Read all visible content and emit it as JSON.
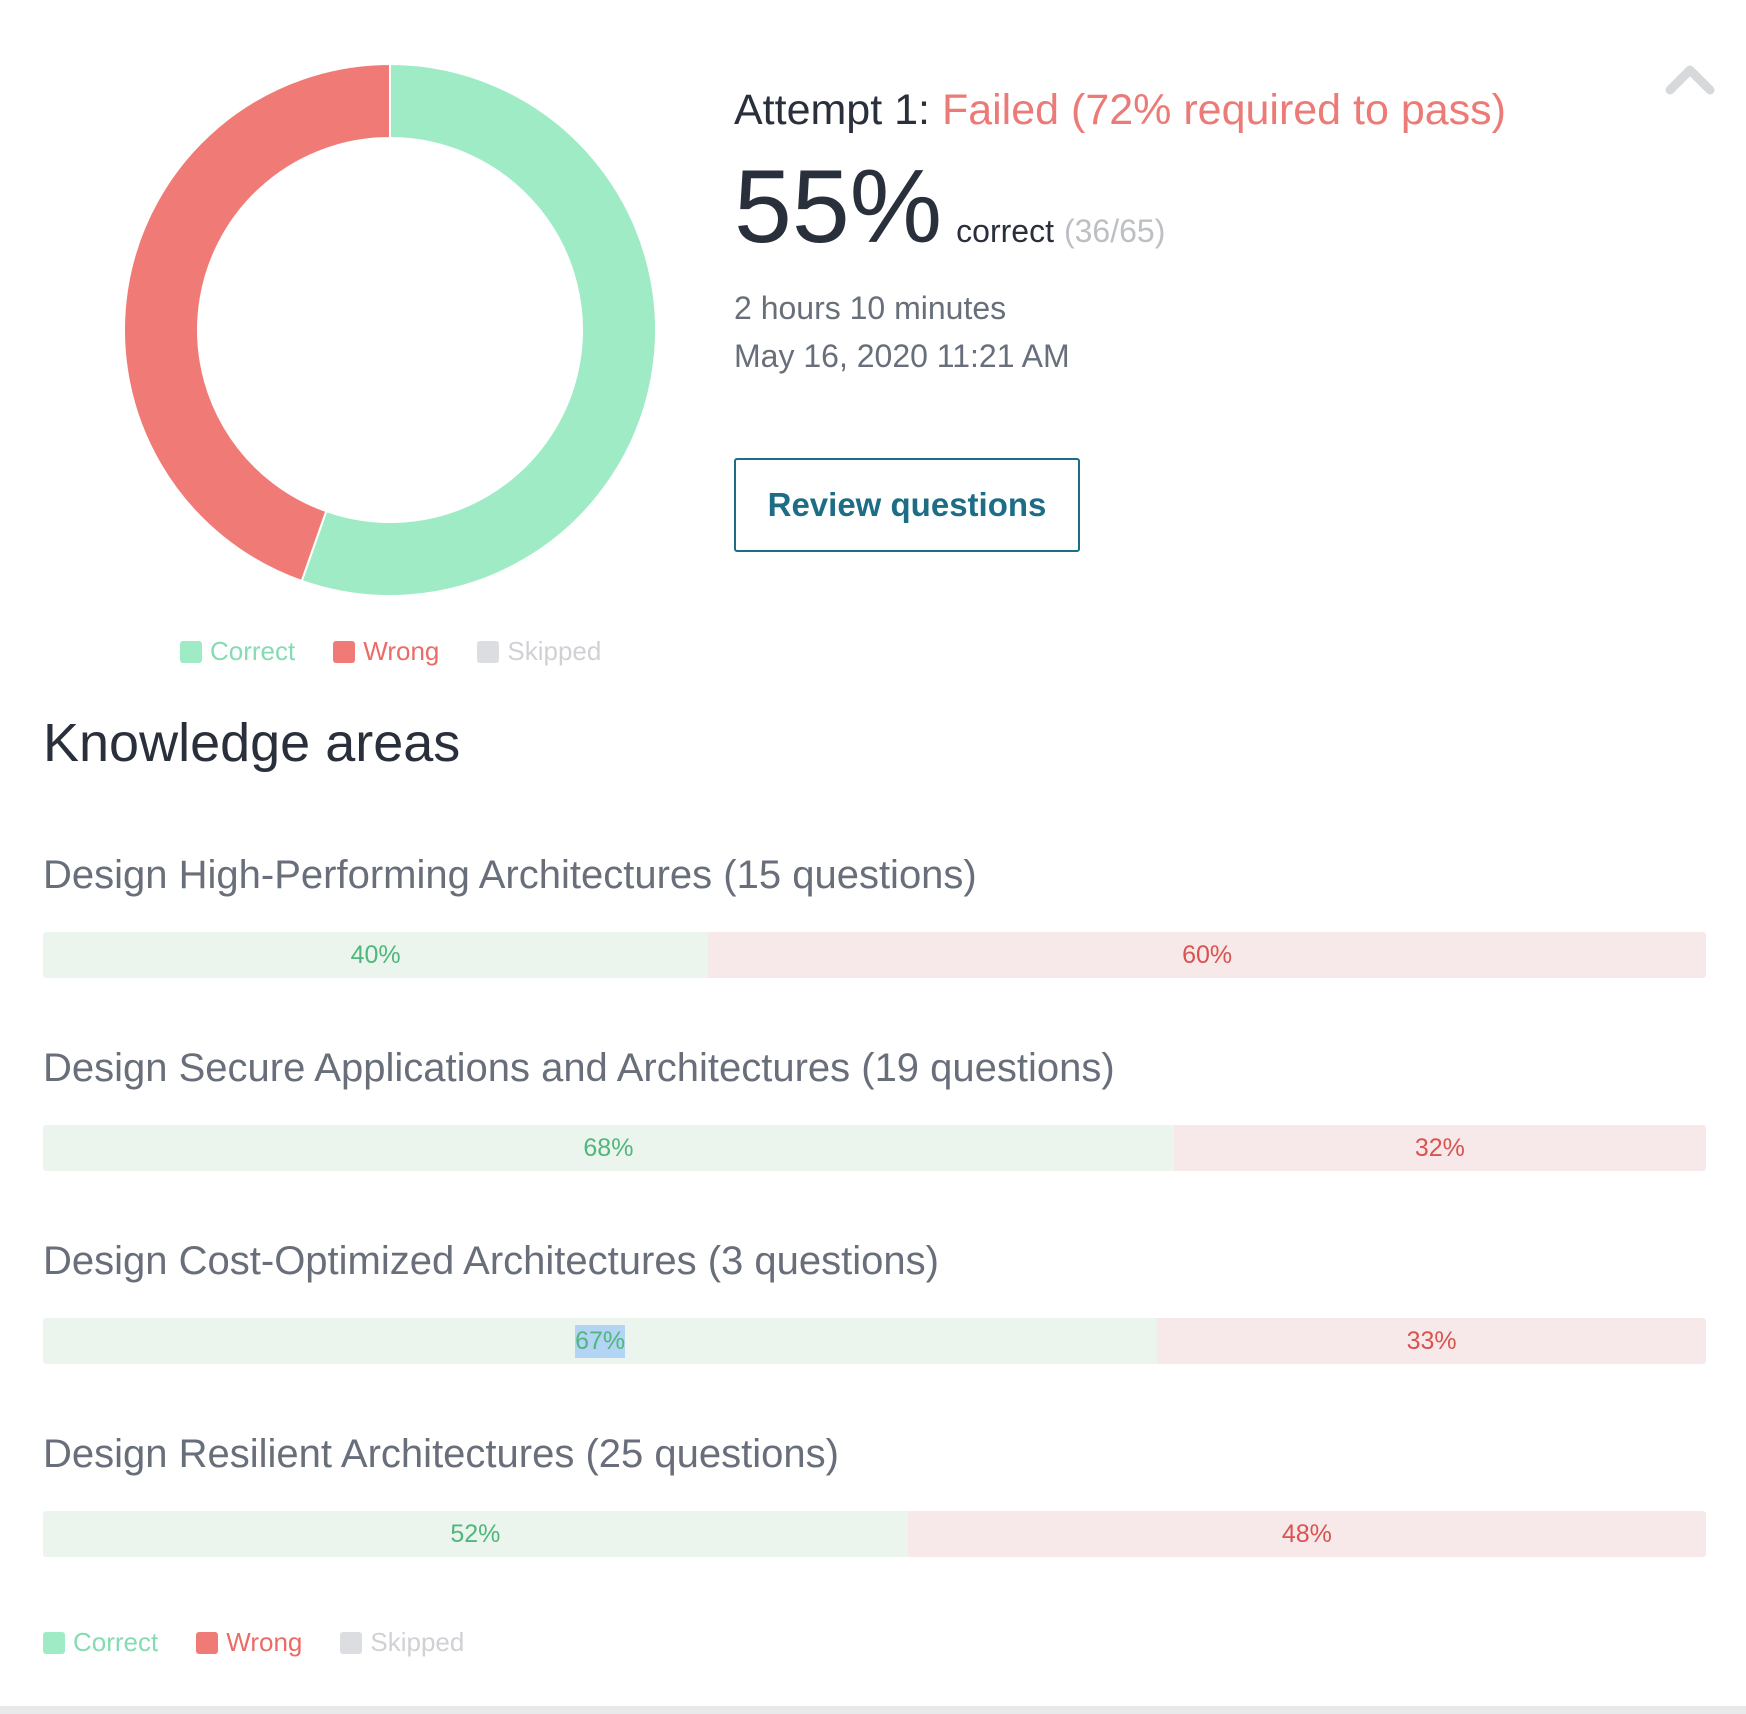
{
  "summary": {
    "attempt_label": "Attempt 1:",
    "attempt_status": "Failed (72% required to pass)",
    "score_pct": "55%",
    "score_word": "correct",
    "score_fraction": "(36/65)",
    "duration": "2 hours 10 minutes",
    "date": "May 16, 2020 11:21 AM",
    "review_label": "Review questions"
  },
  "colors": {
    "correct": "#9eebc6",
    "wrong": "#f07b76",
    "skipped": "#dcdde0",
    "correct_text": "#85dcb2",
    "wrong_text": "#ec6b66",
    "skipped_text": "#cfd1d5"
  },
  "icons": {
    "collapse": "chevron-up-icon"
  },
  "chart_data": {
    "type": "pie",
    "categories": [
      "Correct",
      "Wrong",
      "Skipped"
    ],
    "values": [
      36,
      29,
      0
    ]
  },
  "legend": {
    "correct": "Correct",
    "wrong": "Wrong",
    "skipped": "Skipped"
  },
  "knowledge_areas": {
    "title": "Knowledge areas",
    "items": [
      {
        "name": "Design High-Performing Architectures (15 questions)",
        "correct_pct": 40,
        "wrong_pct": 60,
        "correct_label": "40%",
        "wrong_label": "60%"
      },
      {
        "name": "Design Secure Applications and Architectures (19 questions)",
        "correct_pct": 68,
        "wrong_pct": 32,
        "correct_label": "68%",
        "wrong_label": "32%"
      },
      {
        "name": "Design Cost-Optimized Architectures (3 questions)",
        "correct_pct": 67,
        "wrong_pct": 33,
        "correct_label": "67%",
        "wrong_label": "33%"
      },
      {
        "name": "Design Resilient Architectures (25 questions)",
        "correct_pct": 52,
        "wrong_pct": 48,
        "correct_label": "52%",
        "wrong_label": "48%"
      }
    ]
  }
}
